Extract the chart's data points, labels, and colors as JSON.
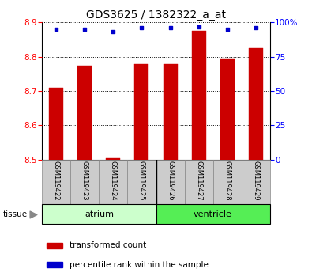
{
  "title": "GDS3625 / 1382322_a_at",
  "samples": [
    "GSM119422",
    "GSM119423",
    "GSM119424",
    "GSM119425",
    "GSM119426",
    "GSM119427",
    "GSM119428",
    "GSM119429"
  ],
  "bar_values": [
    8.71,
    8.775,
    8.505,
    8.778,
    8.778,
    8.875,
    8.795,
    8.825
  ],
  "percentile_values": [
    95,
    95,
    93,
    96,
    96,
    97,
    95,
    96
  ],
  "bar_bottom": 8.5,
  "ylim_left": [
    8.5,
    8.9
  ],
  "ylim_right": [
    0,
    100
  ],
  "yticks_left": [
    8.5,
    8.6,
    8.7,
    8.8,
    8.9
  ],
  "yticks_right": [
    0,
    25,
    50,
    75,
    100
  ],
  "bar_color": "#cc0000",
  "dot_color": "#0000cc",
  "tissue_groups": [
    {
      "label": "atrium",
      "samples": [
        0,
        1,
        2,
        3
      ],
      "color": "#ccffcc"
    },
    {
      "label": "ventricle",
      "samples": [
        4,
        5,
        6,
        7
      ],
      "color": "#55ee55"
    }
  ],
  "sample_box_color": "#cccccc",
  "legend_bar_label": "transformed count",
  "legend_dot_label": "percentile rank within the sample",
  "tissue_label": "tissue",
  "bar_width": 0.5,
  "title_fontsize": 10,
  "tick_fontsize": 7.5,
  "sample_fontsize": 6,
  "tissue_fontsize": 8,
  "legend_fontsize": 7.5
}
